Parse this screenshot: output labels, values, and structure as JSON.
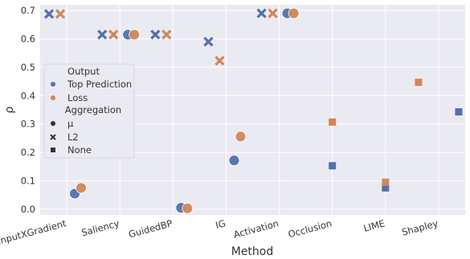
{
  "chart_data": {
    "type": "scatter",
    "xlabel": "Method",
    "ylabel": "ρ",
    "categories": [
      "InputXGradient",
      "Saliency",
      "GuidedBP",
      "IG",
      "Activation",
      "Occlusion",
      "LIME",
      "Shapley"
    ],
    "ylim": [
      -0.02,
      0.72
    ],
    "yticks": [
      "0.0",
      "0.1",
      "0.2",
      "0.3",
      "0.4",
      "0.5",
      "0.6",
      "0.7"
    ],
    "grid": true,
    "colors": {
      "Top Prediction": "#5471ab",
      "Loss": "#d1875a",
      "background": "#eaeaf2",
      "grid": "#ffffff"
    },
    "legend": {
      "placement": "left",
      "hue_title": "Output",
      "hue": [
        "Top Prediction",
        "Loss"
      ],
      "style_title": "Aggregation",
      "styles": [
        {
          "label": "μ",
          "marker": "circle"
        },
        {
          "label": "L2",
          "marker": "x"
        },
        {
          "label": "None",
          "marker": "square"
        }
      ]
    },
    "series": [
      {
        "output": "Top Prediction",
        "aggregation": "μ",
        "marker": "circle",
        "points": [
          {
            "x": "InputXGradient",
            "y": 0.055
          },
          {
            "x": "Saliency",
            "y": 0.615
          },
          {
            "x": "GuidedBP",
            "y": 0.005
          },
          {
            "x": "IG",
            "y": 0.172
          },
          {
            "x": "Activation",
            "y": 0.69
          }
        ]
      },
      {
        "output": "Loss",
        "aggregation": "μ",
        "marker": "circle",
        "points": [
          {
            "x": "InputXGradient",
            "y": 0.075
          },
          {
            "x": "Saliency",
            "y": 0.615
          },
          {
            "x": "GuidedBP",
            "y": 0.003
          },
          {
            "x": "IG",
            "y": 0.256
          },
          {
            "x": "Activation",
            "y": 0.69
          }
        ]
      },
      {
        "output": "Top Prediction",
        "aggregation": "L2",
        "marker": "x",
        "points": [
          {
            "x": "InputXGradient",
            "y": 0.688
          },
          {
            "x": "Saliency",
            "y": 0.615
          },
          {
            "x": "GuidedBP",
            "y": 0.615
          },
          {
            "x": "IG",
            "y": 0.59
          },
          {
            "x": "Activation",
            "y": 0.69
          }
        ]
      },
      {
        "output": "Loss",
        "aggregation": "L2",
        "marker": "x",
        "points": [
          {
            "x": "InputXGradient",
            "y": 0.688
          },
          {
            "x": "Saliency",
            "y": 0.615
          },
          {
            "x": "GuidedBP",
            "y": 0.615
          },
          {
            "x": "IG",
            "y": 0.523
          },
          {
            "x": "Activation",
            "y": 0.69
          }
        ]
      },
      {
        "output": "Top Prediction",
        "aggregation": "None",
        "marker": "square",
        "points": [
          {
            "x": "Occlusion",
            "y": 0.153
          },
          {
            "x": "LIME",
            "y": 0.075
          },
          {
            "x": "Shapley",
            "y": 0.343
          }
        ]
      },
      {
        "output": "Loss",
        "aggregation": "None",
        "marker": "square",
        "points": [
          {
            "x": "Occlusion",
            "y": 0.307
          },
          {
            "x": "LIME",
            "y": 0.095
          },
          {
            "x": "Shapley",
            "y": 0.447
          }
        ]
      }
    ]
  }
}
